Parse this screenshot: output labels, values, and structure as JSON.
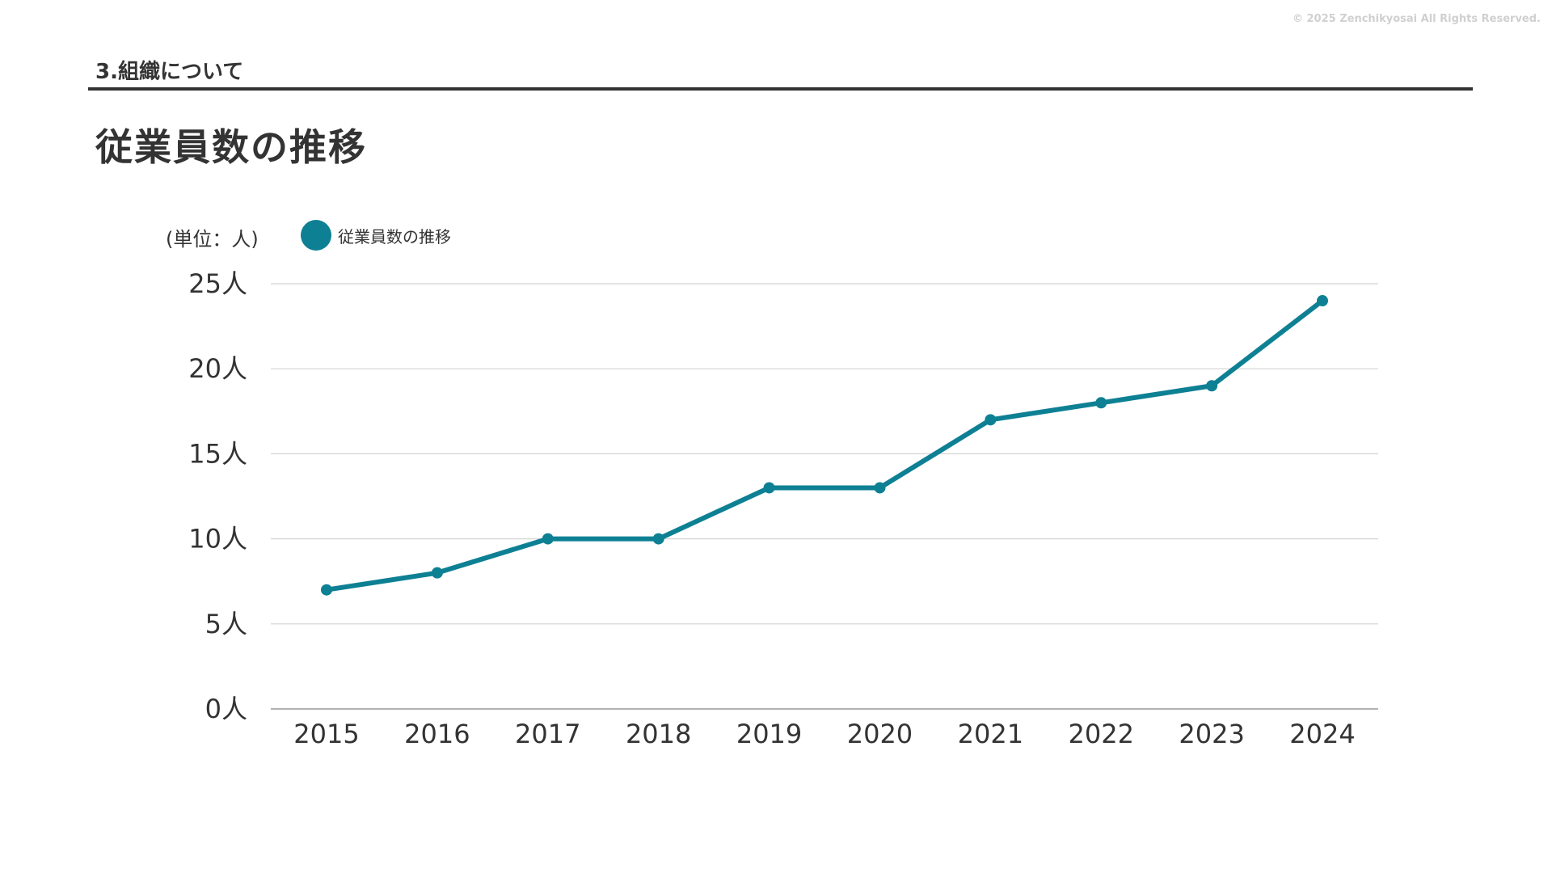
{
  "copyright": "© 2025 Zenchikyosai All Rights Reserved.",
  "section_label": "3.組織について",
  "page_title": "従業員数の推移",
  "unit_note": "(単位：人)",
  "colors": {
    "series": "#0e8094",
    "text": "#333333",
    "grid": "#d4d4d4",
    "rule": "#333333"
  },
  "chart_data": {
    "type": "line",
    "title": "",
    "xlabel": "",
    "ylabel": "",
    "categories": [
      "2015",
      "2016",
      "2017",
      "2018",
      "2019",
      "2020",
      "2021",
      "2022",
      "2023",
      "2024"
    ],
    "series": [
      {
        "name": "従業員数の推移",
        "values": [
          7,
          8,
          10,
          10,
          13,
          13,
          17,
          18,
          19,
          24
        ]
      }
    ],
    "ylim": [
      0,
      25
    ],
    "y_ticks": [
      0,
      5,
      10,
      15,
      20,
      25
    ],
    "y_tick_labels": [
      "0人",
      "5人",
      "10人",
      "15人",
      "20人",
      "25人"
    ],
    "grid": true,
    "legend_position": "top-left"
  }
}
